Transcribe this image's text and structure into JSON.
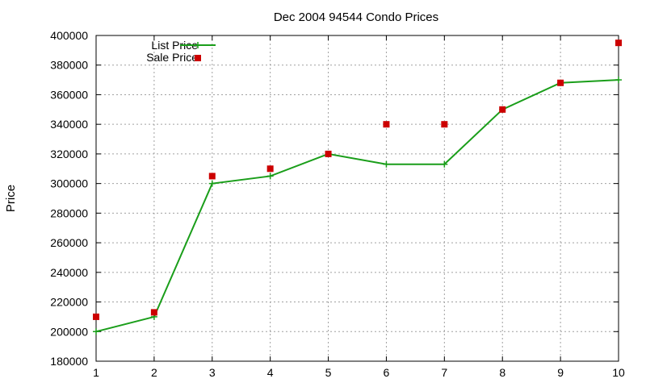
{
  "chart_data": {
    "type": "line",
    "title": "Dec 2004 94544 Condo Prices",
    "xlabel": "",
    "ylabel": "Price",
    "xlim": [
      1,
      10
    ],
    "ylim": [
      180000,
      400000
    ],
    "xticks": [
      1,
      2,
      3,
      4,
      5,
      6,
      7,
      8,
      9,
      10
    ],
    "yticks": [
      180000,
      200000,
      220000,
      240000,
      260000,
      280000,
      300000,
      320000,
      340000,
      360000,
      380000,
      400000
    ],
    "grid": true,
    "legend_position": "top-left",
    "x": [
      1,
      2,
      3,
      4,
      5,
      6,
      7,
      8,
      9,
      10
    ],
    "series": [
      {
        "name": "List Price",
        "style": "linespoints",
        "marker": "plus",
        "color": "#1a9e1a",
        "values": [
          200000,
          210000,
          300000,
          305000,
          320000,
          313000,
          313000,
          350000,
          368000,
          370000
        ]
      },
      {
        "name": "Sale Price",
        "style": "points",
        "marker": "square",
        "color": "#cc0000",
        "values": [
          210000,
          213000,
          305000,
          310000,
          320000,
          340000,
          340000,
          350000,
          368000,
          395000
        ]
      }
    ]
  }
}
